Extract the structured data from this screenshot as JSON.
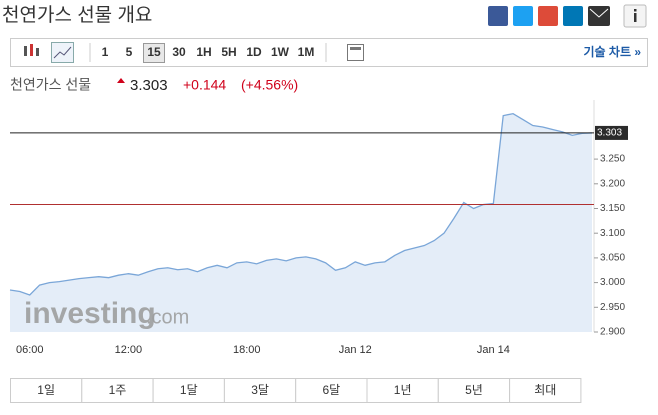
{
  "header": {
    "title": "천연가스 선물 개요"
  },
  "toolbar": {
    "intervals": [
      "1",
      "5",
      "15",
      "30",
      "1H",
      "5H",
      "1D",
      "1W",
      "1M"
    ],
    "selected": "15",
    "link": "기술 차트 »"
  },
  "quote": {
    "name": "천연가스 선물",
    "price": "3.303",
    "change": "+0.144",
    "change_pct": "(+4.56%)"
  },
  "watermark": {
    "brand": "investing",
    "suffix": ".com"
  },
  "chart_data": {
    "type": "area",
    "color": "#7aa6d8",
    "fill": "#e4edf8",
    "categories": [
      null,
      null,
      "06:00",
      null,
      null,
      null,
      null,
      null,
      null,
      null,
      null,
      null,
      "12:00",
      null,
      null,
      null,
      null,
      null,
      null,
      null,
      null,
      null,
      null,
      null,
      "18:00",
      null,
      null,
      null,
      null,
      null,
      null,
      null,
      null,
      null,
      null,
      "Jan 12",
      null,
      null,
      null,
      null,
      null,
      null,
      null,
      null,
      null,
      null,
      null,
      null,
      null,
      "Jan 14",
      null,
      null,
      null,
      null,
      null,
      null,
      null,
      null,
      null,
      null
    ],
    "values": [
      2.985,
      2.982,
      2.975,
      2.995,
      3.0,
      3.002,
      3.005,
      3.008,
      3.01,
      3.012,
      3.01,
      3.015,
      3.018,
      3.015,
      3.022,
      3.028,
      3.03,
      3.026,
      3.028,
      3.022,
      3.03,
      3.035,
      3.03,
      3.04,
      3.042,
      3.038,
      3.045,
      3.048,
      3.044,
      3.05,
      3.052,
      3.048,
      3.04,
      3.025,
      3.03,
      3.042,
      3.035,
      3.04,
      3.042,
      3.055,
      3.065,
      3.07,
      3.075,
      3.085,
      3.1,
      3.13,
      3.162,
      3.15,
      3.158,
      3.16,
      3.338,
      3.342,
      3.33,
      3.318,
      3.315,
      3.31,
      3.305,
      3.298,
      3.302,
      3.303
    ],
    "ylim": [
      2.9,
      3.35
    ],
    "yticks": [
      {
        "value": 2.9,
        "label": "2.900"
      },
      {
        "value": 2.95,
        "label": "2.950"
      },
      {
        "value": 3.0,
        "label": "3.000"
      },
      {
        "value": 3.05,
        "label": "3.050"
      },
      {
        "value": 3.1,
        "label": "3.100"
      },
      {
        "value": 3.15,
        "label": "3.150"
      },
      {
        "value": 3.2,
        "label": "3.200"
      },
      {
        "value": 3.25,
        "label": "3.250"
      }
    ],
    "last_value": 3.303,
    "reference_line": 3.158,
    "reference_color": "#b03030"
  },
  "ranges": [
    "1일",
    "1주",
    "1달",
    "3달",
    "6달",
    "1년",
    "5년",
    "최대"
  ]
}
